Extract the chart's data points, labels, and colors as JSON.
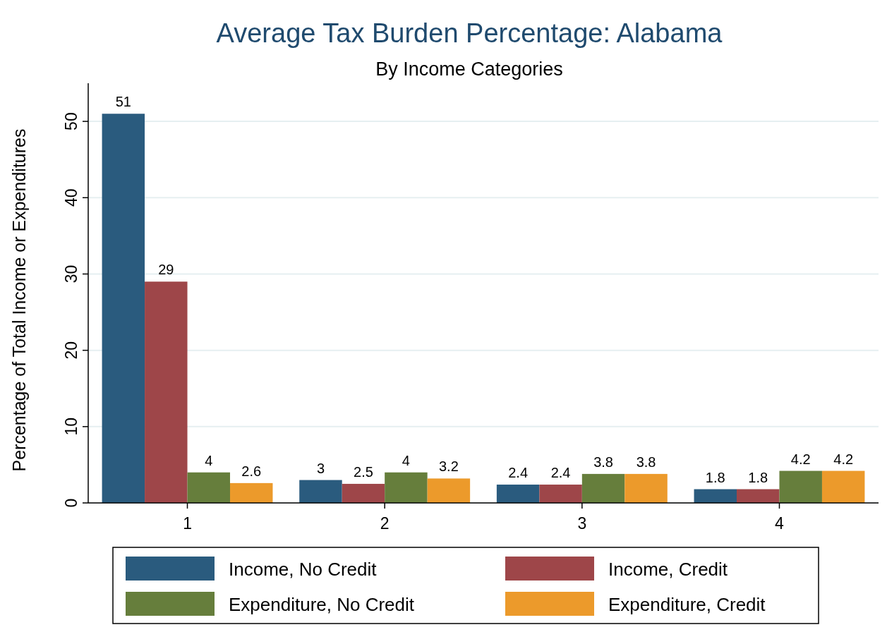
{
  "chart_data": {
    "type": "bar",
    "title": "Average Tax Burden Percentage: Alabama",
    "subtitle": "By Income Categories",
    "ylabel": "Percentage of Total Income or Expenditures",
    "categories": [
      "1",
      "2",
      "3",
      "4"
    ],
    "series": [
      {
        "name": "Income, No Credit",
        "color": "#2a5b7e",
        "values": [
          51,
          3,
          2.4,
          1.8
        ]
      },
      {
        "name": "Income, Credit",
        "color": "#9e4649",
        "values": [
          29,
          2.5,
          2.4,
          1.8
        ]
      },
      {
        "name": "Expenditure, No Credit",
        "color": "#667e3c",
        "values": [
          4,
          4,
          3.8,
          4.2
        ]
      },
      {
        "name": "Expenditure, Credit",
        "color": "#ec9a2b",
        "values": [
          2.6,
          3.2,
          3.8,
          4.2
        ]
      }
    ],
    "ylim": [
      0,
      55
    ],
    "yticks": [
      0,
      10,
      20,
      30,
      40,
      50
    ],
    "grid": "y",
    "data_labels": true,
    "legend": "bottom"
  }
}
